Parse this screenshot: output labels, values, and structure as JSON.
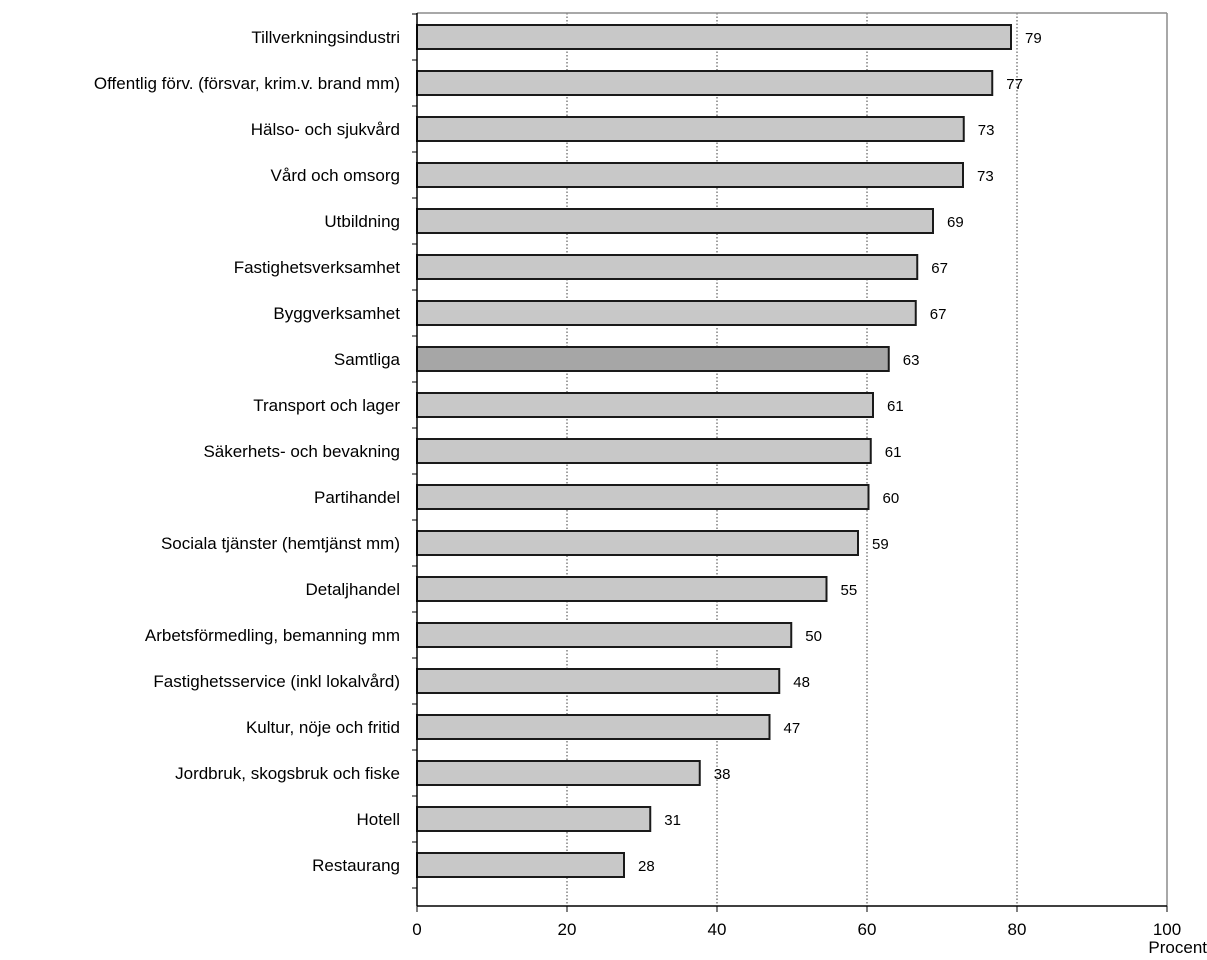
{
  "chart_data": {
    "type": "bar",
    "orientation": "horizontal",
    "categories": [
      "Tillverkningsindustri",
      "Offentlig förv. (försvar, krim.v. brand mm)",
      "Hälso- och sjukvård",
      "Vård och omsorg",
      "Utbildning",
      "Fastighetsverksamhet",
      "Byggverksamhet",
      "Samtliga",
      "Transport och lager",
      "Säkerhets- och bevakning",
      "Partihandel",
      "Sociala tjänster (hemtjänst mm)",
      "Detaljhandel",
      "Arbetsförmedling, bemanning mm",
      "Fastighetsservice (inkl lokalvård)",
      "Kultur, nöje och fritid",
      "Jordbruk, skogsbruk och fiske",
      "Hotell",
      "Restaurang"
    ],
    "values": [
      79.2,
      76.7,
      72.9,
      72.8,
      68.8,
      66.7,
      66.5,
      62.9,
      60.8,
      60.5,
      60.2,
      58.8,
      54.6,
      49.9,
      48.3,
      47.0,
      37.7,
      31.1,
      27.6
    ],
    "value_labels": [
      "79",
      "77",
      "73",
      "73",
      "69",
      "67",
      "67",
      "63",
      "61",
      "61",
      "60",
      "59",
      "55",
      "50",
      "48",
      "47",
      "38",
      "31",
      "28"
    ],
    "highlight_category": "Samtliga",
    "xlim": [
      0,
      100
    ],
    "xticks": [
      "0",
      "20",
      "40",
      "60",
      "80",
      "100"
    ],
    "xlabel": "Procent",
    "ylabel": "",
    "title": "",
    "grid": "vertical dotted",
    "legend": "none",
    "colors": {
      "bar": "#c8c8c8",
      "bar_highlight": "#a6a6a6",
      "bar_border": "#1a1a1a",
      "grid": "#404040",
      "frame": "#8c8c8c"
    }
  }
}
